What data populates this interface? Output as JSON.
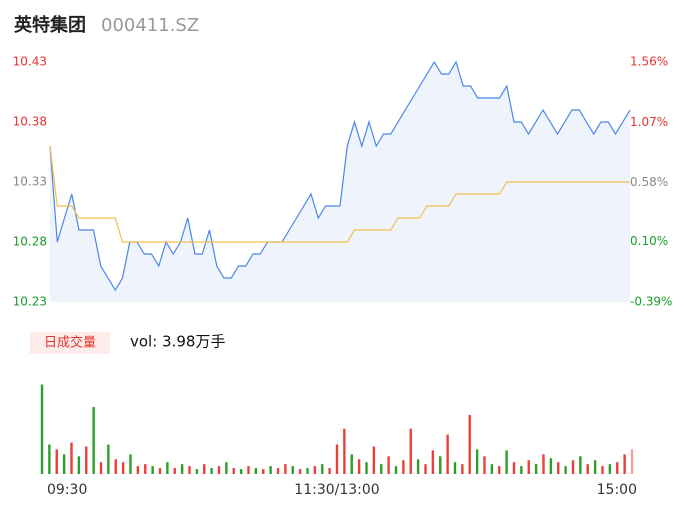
{
  "header": {
    "name": "英特集团",
    "code": "000411.SZ"
  },
  "chart_data": [
    {
      "type": "line",
      "xlim": [
        0,
        240
      ],
      "x": [
        0,
        3,
        6,
        9,
        12,
        15,
        18,
        21,
        24,
        27,
        30,
        33,
        36,
        39,
        42,
        45,
        48,
        51,
        54,
        57,
        60,
        63,
        66,
        69,
        72,
        75,
        78,
        81,
        84,
        87,
        90,
        93,
        96,
        99,
        102,
        105,
        108,
        111,
        114,
        117,
        120,
        123,
        126,
        129,
        132,
        135,
        138,
        141,
        144,
        147,
        150,
        153,
        156,
        159,
        162,
        165,
        168,
        171,
        174,
        177,
        180,
        183,
        186,
        189,
        192,
        195,
        198,
        201,
        204,
        207,
        210,
        213,
        216,
        219,
        222,
        225,
        228,
        231,
        234,
        237,
        240
      ],
      "ylim": [
        10.23,
        10.43
      ],
      "yticks": [
        10.23,
        10.28,
        10.33,
        10.38,
        10.43
      ],
      "ytick_colors": [
        "#1a9e2a",
        "#1a9e2a",
        "#888888",
        "#e8332e",
        "#e8332e"
      ],
      "y2lim": [
        -0.39,
        1.56
      ],
      "y2ticks": [
        {
          "value": -0.39,
          "label": "-0.39%"
        },
        {
          "value": 0.1,
          "label": "0.10%"
        },
        {
          "value": 0.58,
          "label": "0.58%"
        },
        {
          "value": 1.07,
          "label": "1.07%"
        },
        {
          "value": 1.56,
          "label": "1.56%"
        }
      ],
      "y2tick_colors": [
        "#1a9e2a",
        "#1a9e2a",
        "#888888",
        "#e8332e",
        "#e8332e"
      ],
      "series": [
        {
          "color": "#4a86e8",
          "fill": "#eef3fc",
          "values": [
            10.36,
            10.28,
            10.3,
            10.32,
            10.29,
            10.29,
            10.29,
            10.26,
            10.25,
            10.24,
            10.25,
            10.28,
            10.28,
            10.27,
            10.27,
            10.26,
            10.28,
            10.27,
            10.28,
            10.3,
            10.27,
            10.27,
            10.29,
            10.26,
            10.25,
            10.25,
            10.26,
            10.26,
            10.27,
            10.27,
            10.28,
            10.28,
            10.28,
            10.29,
            10.3,
            10.31,
            10.32,
            10.3,
            10.31,
            10.31,
            10.31,
            10.36,
            10.38,
            10.36,
            10.38,
            10.36,
            10.37,
            10.37,
            10.38,
            10.39,
            10.4,
            10.41,
            10.42,
            10.43,
            10.42,
            10.42,
            10.43,
            10.41,
            10.41,
            10.4,
            10.4,
            10.4,
            10.4,
            10.41,
            10.38,
            10.38,
            10.37,
            10.38,
            10.39,
            10.38,
            10.37,
            10.38,
            10.39,
            10.39,
            10.38,
            10.37,
            10.38,
            10.38,
            10.37,
            10.38,
            10.39
          ]
        },
        {
          "color": "#f5c04a",
          "values": [
            10.36,
            10.31,
            10.31,
            10.31,
            10.3,
            10.3,
            10.3,
            10.3,
            10.3,
            10.3,
            10.28,
            10.28,
            10.28,
            10.28,
            10.28,
            10.28,
            10.28,
            10.28,
            10.28,
            10.28,
            10.28,
            10.28,
            10.28,
            10.28,
            10.28,
            10.28,
            10.28,
            10.28,
            10.28,
            10.28,
            10.28,
            10.28,
            10.28,
            10.28,
            10.28,
            10.28,
            10.28,
            10.28,
            10.28,
            10.28,
            10.28,
            10.28,
            10.29,
            10.29,
            10.29,
            10.29,
            10.29,
            10.29,
            10.3,
            10.3,
            10.3,
            10.3,
            10.31,
            10.31,
            10.31,
            10.31,
            10.32,
            10.32,
            10.32,
            10.32,
            10.32,
            10.32,
            10.32,
            10.33,
            10.33,
            10.33,
            10.33,
            10.33,
            10.33,
            10.33,
            10.33,
            10.33,
            10.33,
            10.33,
            10.33,
            10.33,
            10.33,
            10.33,
            10.33,
            10.33,
            10.33
          ]
        }
      ]
    },
    {
      "type": "bar",
      "label": "日成交量",
      "summary": "vol: 3.98万手",
      "xlim": [
        0,
        240
      ],
      "x": [
        0,
        3,
        6,
        9,
        12,
        15,
        18,
        21,
        24,
        27,
        30,
        33,
        36,
        39,
        42,
        45,
        48,
        51,
        54,
        57,
        60,
        63,
        66,
        69,
        72,
        75,
        78,
        81,
        84,
        87,
        90,
        93,
        96,
        99,
        102,
        105,
        108,
        111,
        114,
        117,
        120,
        123,
        126,
        129,
        132,
        135,
        138,
        141,
        144,
        147,
        150,
        153,
        156,
        159,
        162,
        165,
        168,
        171,
        174,
        177,
        180,
        183,
        186,
        189,
        192,
        195,
        198,
        201,
        204,
        207,
        210,
        213,
        216,
        219,
        222,
        225,
        228,
        231,
        234,
        237,
        240
      ],
      "xticks": [
        {
          "value": 0,
          "label": "09:30"
        },
        {
          "value": 120,
          "label": "11:30/13:00"
        },
        {
          "value": 240,
          "label": "15:00"
        }
      ],
      "ylim": [
        0,
        3700
      ],
      "values": [
        3640,
        1200,
        1000,
        800,
        1280,
        720,
        1120,
        2720,
        480,
        1200,
        600,
        480,
        800,
        320,
        400,
        320,
        240,
        480,
        240,
        400,
        320,
        200,
        400,
        240,
        320,
        480,
        240,
        200,
        320,
        240,
        200,
        320,
        240,
        400,
        320,
        200,
        240,
        320,
        400,
        240,
        1200,
        1840,
        800,
        600,
        480,
        1120,
        400,
        720,
        320,
        560,
        1840,
        600,
        400,
        960,
        720,
        1600,
        480,
        400,
        2400,
        1000,
        720,
        400,
        320,
        960,
        480,
        320,
        560,
        400,
        800,
        640,
        480,
        320,
        560,
        720,
        400,
        560,
        320,
        400,
        480,
        800,
        1000
      ],
      "colors": [
        "#2aa02a",
        "#2aa02a",
        "#e8413c",
        "#2aa02a",
        "#e8413c",
        "#2aa02a",
        "#e8413c",
        "#2aa02a",
        "#e8413c",
        "#2aa02a",
        "#e8413c",
        "#e8413c",
        "#2aa02a",
        "#e8413c",
        "#e8413c",
        "#2aa02a",
        "#e8413c",
        "#2aa02a",
        "#e8413c",
        "#2aa02a",
        "#e8413c",
        "#2aa02a",
        "#e8413c",
        "#2aa02a",
        "#e8413c",
        "#2aa02a",
        "#e8413c",
        "#2aa02a",
        "#e8413c",
        "#2aa02a",
        "#e8413c",
        "#2aa02a",
        "#e8413c",
        "#e8413c",
        "#2aa02a",
        "#e8413c",
        "#2aa02a",
        "#e8413c",
        "#2aa02a",
        "#e8413c",
        "#e8413c",
        "#e8413c",
        "#2aa02a",
        "#e8413c",
        "#2aa02a",
        "#e8413c",
        "#2aa02a",
        "#e8413c",
        "#2aa02a",
        "#e8413c",
        "#e8413c",
        "#2aa02a",
        "#e8413c",
        "#e8413c",
        "#2aa02a",
        "#e8413c",
        "#2aa02a",
        "#e8413c",
        "#e8413c",
        "#2aa02a",
        "#e8413c",
        "#2aa02a",
        "#e8413c",
        "#2aa02a",
        "#e8413c",
        "#2aa02a",
        "#e8413c",
        "#2aa02a",
        "#e8413c",
        "#2aa02a",
        "#e8413c",
        "#2aa02a",
        "#e8413c",
        "#2aa02a",
        "#e8413c",
        "#2aa02a",
        "#e8413c",
        "#2aa02a",
        "#e8413c",
        "#e8413c",
        "#f4a0a0"
      ]
    }
  ]
}
